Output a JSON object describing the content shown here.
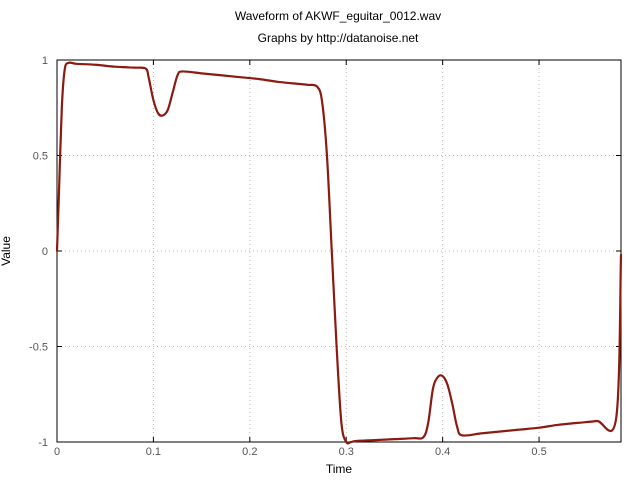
{
  "chart_data": {
    "type": "line",
    "title": "Waveform of AKWF_eguitar_0012.wav",
    "subtitle": "Graphs by http://datanoise.net",
    "xlabel": "Time",
    "ylabel": "Value",
    "xlim": [
      0,
      0.585
    ],
    "ylim": [
      -1,
      1
    ],
    "xticks": [
      0,
      0.1,
      0.2,
      0.3,
      0.4,
      0.5
    ],
    "xtick_labels": [
      "0",
      "0.1",
      "0.2",
      "0.3",
      "0.4",
      "0.5"
    ],
    "yticks": [
      -1,
      -0.5,
      0,
      0.5,
      1
    ],
    "ytick_labels": [
      "-1",
      "-0.5",
      "0",
      "0.5",
      "1"
    ],
    "grid": true,
    "line_color": "#8b1a10",
    "series": [
      {
        "x": [
          0,
          0.002,
          0.005,
          0.008,
          0.012,
          0.02,
          0.04,
          0.06,
          0.08,
          0.092,
          0.095,
          0.1,
          0.105,
          0.11,
          0.115,
          0.12,
          0.125,
          0.13,
          0.15,
          0.17,
          0.19,
          0.21,
          0.23,
          0.25,
          0.26,
          0.27,
          0.275,
          0.28,
          0.285,
          0.29,
          0.295,
          0.3,
          0.305,
          0.31,
          0.33,
          0.35,
          0.37,
          0.38,
          0.385,
          0.39,
          0.395,
          0.4,
          0.405,
          0.41,
          0.415,
          0.42,
          0.44,
          0.46,
          0.48,
          0.5,
          0.52,
          0.54,
          0.56,
          0.58,
          0.585
        ],
        "y": [
          0,
          0.3,
          0.75,
          0.95,
          0.985,
          0.98,
          0.975,
          0.965,
          0.96,
          0.955,
          0.91,
          0.79,
          0.72,
          0.71,
          0.74,
          0.83,
          0.92,
          0.94,
          0.93,
          0.92,
          0.91,
          0.9,
          0.885,
          0.875,
          0.87,
          0.86,
          0.78,
          0.5,
          0.0,
          -0.5,
          -0.9,
          -1.0,
          -1.0,
          -0.995,
          -0.99,
          -0.985,
          -0.98,
          -0.975,
          -0.9,
          -0.72,
          -0.66,
          -0.655,
          -0.7,
          -0.8,
          -0.92,
          -0.965,
          -0.955,
          -0.945,
          -0.935,
          -0.925,
          -0.91,
          -0.9,
          -0.89,
          -0.875,
          -0.02
        ]
      }
    ]
  }
}
